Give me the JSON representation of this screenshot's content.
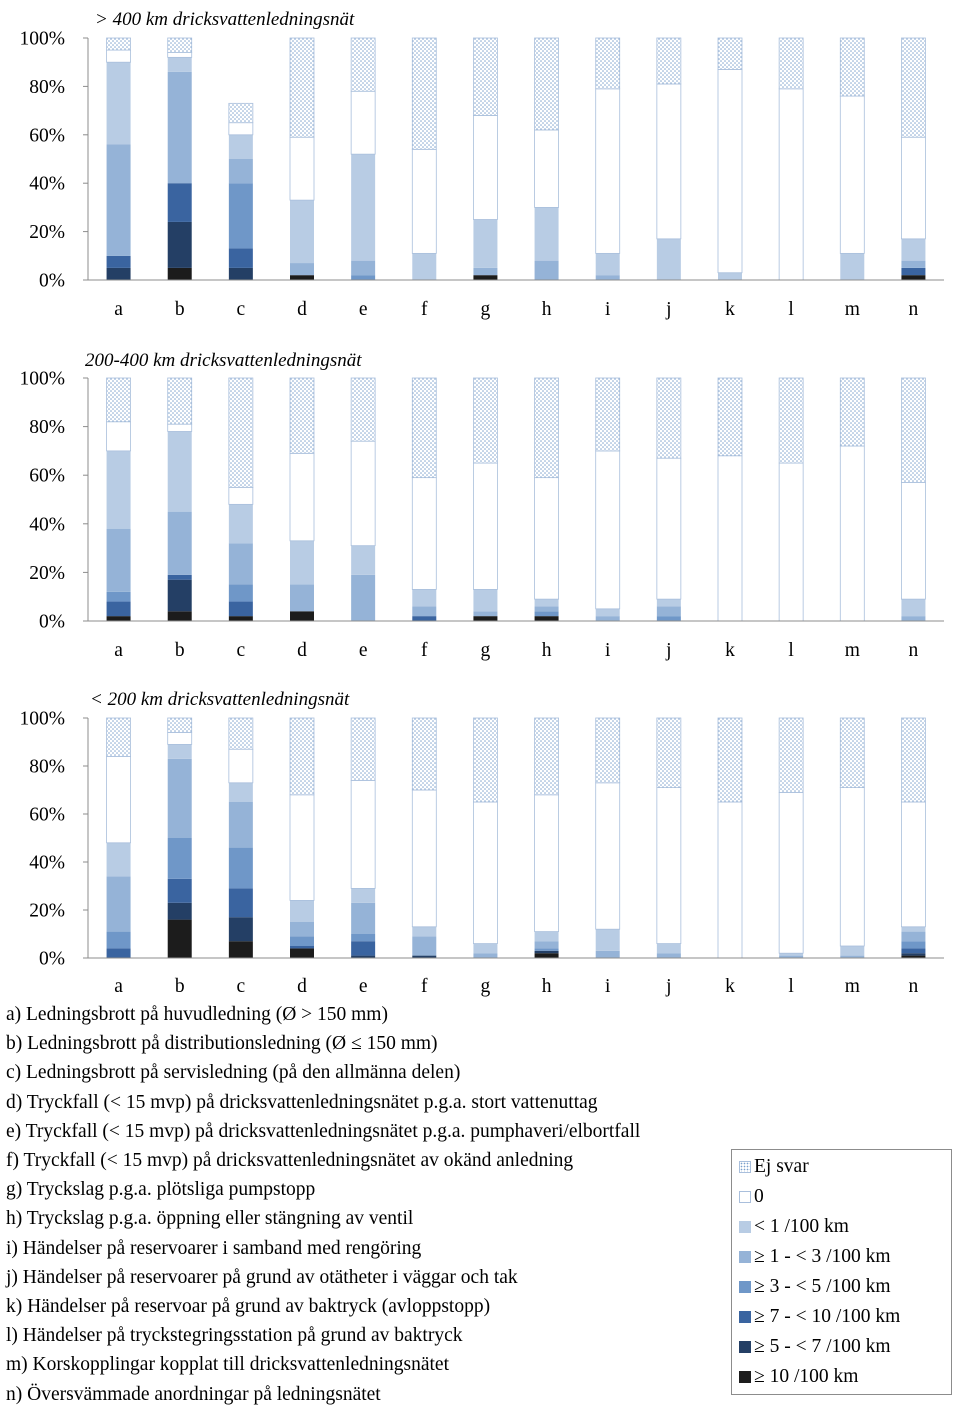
{
  "colors": {
    "ej_svar_fill": "#ffffff",
    "ej_svar_dots": "#7aa0cc",
    "zero": "#ffffff",
    "zero_border": "#a9bfdc",
    "lt1": "#b8cce4",
    "s1_3": "#95b3d7",
    "s3_5": "#6f97c8",
    "s7_10": "#3a64a0",
    "s5_7": "#243f65",
    "ge10": "#1c1c1c",
    "axis": "#8c8c8c"
  },
  "chart_data": [
    {
      "type": "bar",
      "stacked": true,
      "title": "> 400 km dricksvattenledningsnät",
      "categories": [
        "a",
        "b",
        "c",
        "d",
        "e",
        "f",
        "g",
        "h",
        "i",
        "j",
        "k",
        "l",
        "m",
        "n"
      ],
      "yticks": [
        "0%",
        "20%",
        "40%",
        "60%",
        "80%",
        "100%"
      ],
      "ylim": [
        0,
        100
      ],
      "series": [
        {
          "name": "≥ 10 /100 km",
          "key": "ge10",
          "values": [
            0,
            5,
            0,
            2,
            0,
            0,
            2,
            0,
            0,
            0,
            0,
            0,
            0,
            2
          ]
        },
        {
          "name": "≥ 5 - < 7 /100 km",
          "key": "s5_7",
          "values": [
            5,
            19,
            5,
            0,
            0,
            0,
            0,
            0,
            0,
            0,
            0,
            0,
            0,
            0
          ]
        },
        {
          "name": "≥ 7 - < 10 /100 km",
          "key": "s7_10",
          "values": [
            5,
            16,
            8,
            0,
            0,
            0,
            0,
            0,
            0,
            0,
            0,
            0,
            0,
            3
          ]
        },
        {
          "name": "≥ 3 - < 5 /100 km",
          "key": "s3_5",
          "values": [
            0,
            0,
            27,
            0,
            2,
            0,
            0,
            0,
            0,
            0,
            0,
            0,
            0,
            0
          ]
        },
        {
          "name": "≥ 1 - < 3 /100 km",
          "key": "s1_3",
          "values": [
            46,
            46,
            10,
            5,
            6,
            0,
            3,
            8,
            2,
            0,
            0,
            0,
            0,
            3
          ]
        },
        {
          "name": "< 1 /100 km",
          "key": "lt1",
          "values": [
            34,
            6,
            10,
            26,
            44,
            11,
            20,
            22,
            9,
            17,
            3,
            0,
            11,
            9
          ]
        },
        {
          "name": "0",
          "key": "zero",
          "values": [
            5,
            2,
            5,
            26,
            26,
            43,
            43,
            32,
            68,
            64,
            84,
            79,
            65,
            42
          ]
        },
        {
          "name": "Ej svar",
          "key": "ej_svar",
          "values": [
            5,
            6,
            8,
            41,
            22,
            46,
            32,
            38,
            21,
            19,
            13,
            21,
            24,
            41
          ]
        }
      ]
    },
    {
      "type": "bar",
      "stacked": true,
      "title": "200-400 km dricksvattenledningsnät",
      "categories": [
        "a",
        "b",
        "c",
        "d",
        "e",
        "f",
        "g",
        "h",
        "i",
        "j",
        "k",
        "l",
        "m",
        "n"
      ],
      "yticks": [
        "0%",
        "20%",
        "40%",
        "60%",
        "80%",
        "100%"
      ],
      "ylim": [
        0,
        100
      ],
      "series": [
        {
          "name": "≥ 10 /100 km",
          "key": "ge10",
          "values": [
            2,
            4,
            2,
            4,
            0,
            0,
            2,
            2,
            0,
            0,
            0,
            0,
            0,
            0
          ]
        },
        {
          "name": "≥ 5 - < 7 /100 km",
          "key": "s5_7",
          "values": [
            0,
            13,
            0,
            0,
            0,
            0,
            0,
            0,
            0,
            0,
            0,
            0,
            0,
            0
          ]
        },
        {
          "name": "≥ 7 - < 10 /100 km",
          "key": "s7_10",
          "values": [
            6,
            2,
            6,
            0,
            0,
            2,
            0,
            0,
            0,
            0,
            0,
            0,
            0,
            0
          ]
        },
        {
          "name": "≥ 3 - < 5 /100 km",
          "key": "s3_5",
          "values": [
            4,
            0,
            7,
            0,
            0,
            0,
            0,
            2,
            0,
            2,
            0,
            0,
            0,
            0
          ]
        },
        {
          "name": "≥ 1 - < 3 /100 km",
          "key": "s1_3",
          "values": [
            26,
            26,
            17,
            11,
            19,
            4,
            2,
            2,
            2,
            4,
            0,
            0,
            0,
            2
          ]
        },
        {
          "name": "< 1 /100 km",
          "key": "lt1",
          "values": [
            32,
            33,
            16,
            18,
            12,
            7,
            9,
            3,
            3,
            3,
            0,
            0,
            0,
            7
          ]
        },
        {
          "name": "0",
          "key": "zero",
          "values": [
            12,
            3,
            7,
            36,
            43,
            46,
            52,
            50,
            65,
            58,
            68,
            65,
            72,
            48
          ]
        },
        {
          "name": "Ej svar",
          "key": "ej_svar",
          "values": [
            18,
            19,
            45,
            31,
            26,
            41,
            35,
            41,
            30,
            33,
            32,
            35,
            28,
            43
          ]
        }
      ]
    },
    {
      "type": "bar",
      "stacked": true,
      "title": "< 200 km dricksvattenledningsnät",
      "categories": [
        "a",
        "b",
        "c",
        "d",
        "e",
        "f",
        "g",
        "h",
        "i",
        "j",
        "k",
        "l",
        "m",
        "n"
      ],
      "yticks": [
        "0%",
        "20%",
        "40%",
        "60%",
        "80%",
        "100%"
      ],
      "ylim": [
        0,
        100
      ],
      "series": [
        {
          "name": "≥ 10 /100 km",
          "key": "ge10",
          "values": [
            0,
            16,
            7,
            4,
            0,
            0,
            0,
            2,
            0,
            0,
            0,
            0,
            0,
            1
          ]
        },
        {
          "name": "≥ 5 - < 7 /100 km",
          "key": "s5_7",
          "values": [
            0,
            7,
            10,
            0,
            1,
            1,
            0,
            1,
            0,
            0,
            0,
            0,
            0,
            1
          ]
        },
        {
          "name": "≥ 7 - < 10 /100 km",
          "key": "s7_10",
          "values": [
            4,
            10,
            12,
            1,
            6,
            0,
            0,
            0,
            0,
            0,
            0,
            0,
            0,
            2
          ]
        },
        {
          "name": "≥ 3 - < 5 /100 km",
          "key": "s3_5",
          "values": [
            7,
            17,
            17,
            4,
            3,
            0,
            0,
            1,
            0,
            0,
            0,
            0,
            0,
            3
          ]
        },
        {
          "name": "≥ 1 - < 3 /100 km",
          "key": "s1_3",
          "values": [
            23,
            33,
            19,
            6,
            13,
            8,
            2,
            3,
            3,
            2,
            0,
            1,
            1,
            4
          ]
        },
        {
          "name": "< 1 /100 km",
          "key": "lt1",
          "values": [
            14,
            6,
            8,
            9,
            6,
            4,
            4,
            4,
            9,
            4,
            0,
            1,
            4,
            2
          ]
        },
        {
          "name": "0",
          "key": "zero",
          "values": [
            36,
            5,
            14,
            44,
            45,
            57,
            59,
            57,
            61,
            65,
            65,
            67,
            66,
            52
          ]
        },
        {
          "name": "Ej svar",
          "key": "ej_svar",
          "values": [
            16,
            6,
            13,
            32,
            26,
            30,
            35,
            32,
            27,
            29,
            35,
            31,
            29,
            35
          ]
        }
      ]
    }
  ],
  "notes": [
    "a) Ledningsbrott på huvudledning (Ø > 150 mm)",
    "b) Ledningsbrott på distributionsledning (Ø ≤ 150 mm)",
    "c) Ledningsbrott på servisledning (på den allmänna delen)",
    "d) Tryckfall (< 15 mvp) på dricksvattenledningsnätet p.g.a. stort vattenuttag",
    "e) Tryckfall (< 15 mvp) på dricksvattenledningsnätet p.g.a. pumphaveri/elbortfall",
    "f) Tryckfall (< 15 mvp) på dricksvattenledningsnätet av okänd anledning",
    "g) Tryckslag p.g.a. plötsliga pumpstopp",
    "h) Tryckslag p.g.a. öppning eller stängning av ventil",
    "i) Händelser på reservoarer i samband med rengöring",
    "j) Händelser på reservoarer på grund av otätheter i väggar och tak",
    "k) Händelser på reservoar på grund av baktryck (avloppstopp)",
    "l) Händelser på tryckstegringsstation på grund av baktryck",
    "m) Korskopplingar kopplat till dricksvattenledningsnätet",
    "n) Översvämmade anordningar på ledningsnätet"
  ],
  "legend": [
    {
      "label": "Ej svar",
      "key": "ej_svar"
    },
    {
      "label": "0",
      "key": "zero"
    },
    {
      "label": "< 1 /100 km",
      "key": "lt1"
    },
    {
      "label": "≥ 1 - < 3 /100 km",
      "key": "s1_3"
    },
    {
      "label": "≥ 3 - < 5 /100 km",
      "key": "s3_5"
    },
    {
      "label": "≥ 7 - < 10 /100 km",
      "key": "s7_10"
    },
    {
      "label": "≥ 5 - < 7 /100 km",
      "key": "s5_7"
    },
    {
      "label": "≥ 10 /100 km",
      "key": "ge10"
    }
  ]
}
